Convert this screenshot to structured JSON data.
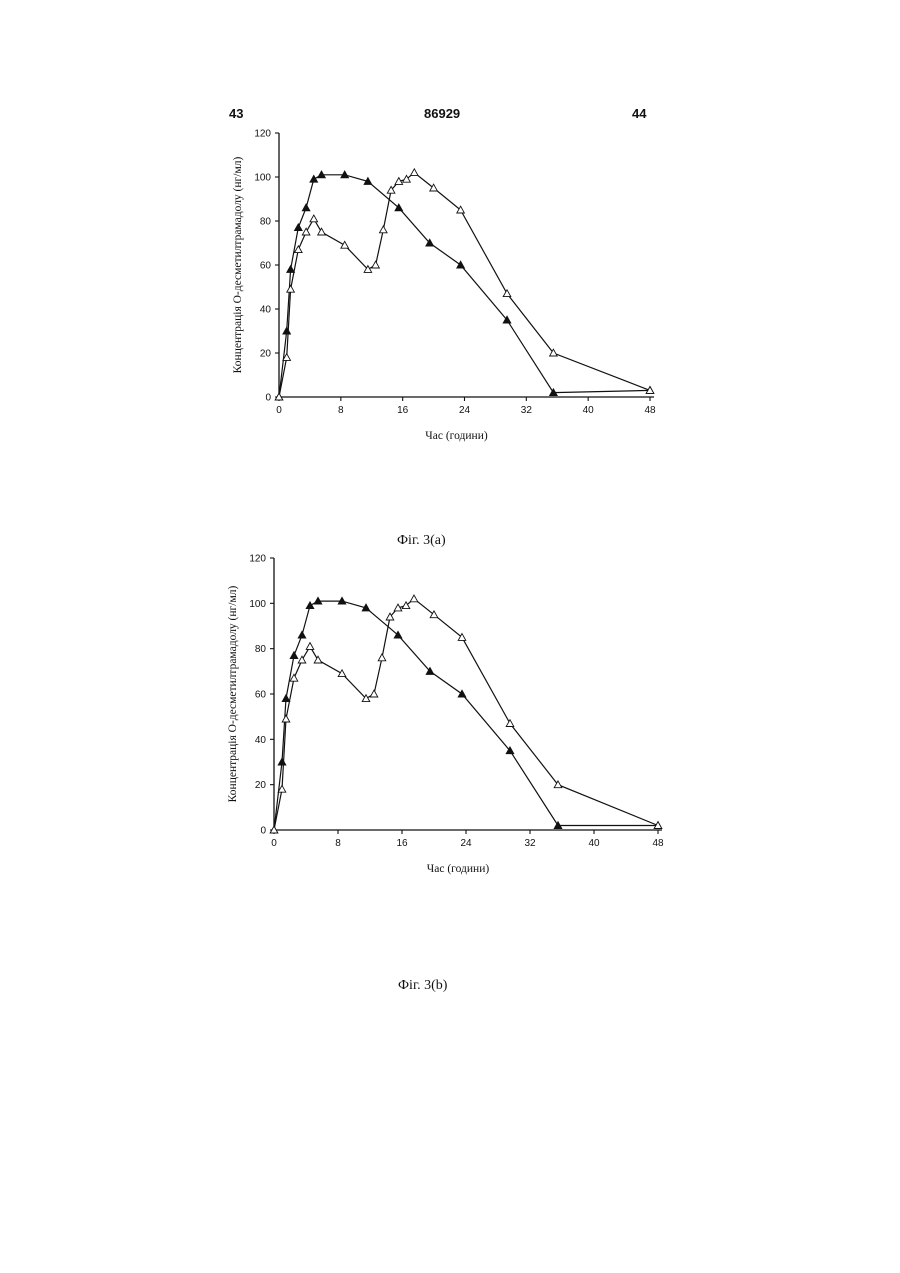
{
  "header": {
    "left": "43",
    "center": "86929",
    "right": "44"
  },
  "figures": [
    {
      "caption": "Фіг. 3(a)"
    },
    {
      "caption": "Фіг. 3(b)"
    }
  ],
  "chart_data": [
    {
      "type": "line",
      "xlabel": "Час (години)",
      "ylabel": "Концентрація О-десметилтрамадолу (нг/мл)",
      "xlim": [
        0,
        48
      ],
      "ylim": [
        0,
        120
      ],
      "xticks": [
        0,
        8,
        16,
        24,
        32,
        40,
        48
      ],
      "yticks": [
        0,
        20,
        40,
        60,
        80,
        100,
        120
      ],
      "grid": false,
      "series": [
        {
          "marker": "filled-triangle",
          "x": [
            0,
            1,
            1.5,
            2.5,
            3.5,
            4.5,
            5.5,
            8.5,
            11.5,
            15.5,
            19.5,
            23.5,
            29.5,
            35.5,
            48
          ],
          "y": [
            0,
            30,
            58,
            77,
            86,
            99,
            101,
            101,
            98,
            86,
            70,
            60,
            35,
            2,
            3
          ]
        },
        {
          "marker": "open-triangle",
          "x": [
            0,
            1,
            1.5,
            2.5,
            3.5,
            4.5,
            5.5,
            8.5,
            11.5,
            12.5,
            13.5,
            14.5,
            15.5,
            16.5,
            17.5,
            20,
            23.5,
            29.5,
            35.5,
            48
          ],
          "y": [
            0,
            18,
            49,
            67,
            75,
            81,
            75,
            69,
            58,
            60,
            76,
            94,
            98,
            99,
            102,
            95,
            85,
            47,
            20,
            3
          ]
        }
      ]
    },
    {
      "type": "line",
      "xlabel": "Час (години)",
      "ylabel": "Концентрація О-десметилтрамадолу (нг/мл)",
      "xlim": [
        0,
        48
      ],
      "ylim": [
        0,
        120
      ],
      "xticks": [
        0,
        8,
        16,
        24,
        32,
        40,
        48
      ],
      "yticks": [
        0,
        20,
        40,
        60,
        80,
        100,
        120
      ],
      "grid": false,
      "series": [
        {
          "marker": "filled-triangle",
          "x": [
            0,
            1,
            1.5,
            2.5,
            3.5,
            4.5,
            5.5,
            8.5,
            11.5,
            15.5,
            19.5,
            23.5,
            29.5,
            35.5,
            48
          ],
          "y": [
            0,
            30,
            58,
            77,
            86,
            99,
            101,
            101,
            98,
            86,
            70,
            60,
            35,
            2,
            2
          ]
        },
        {
          "marker": "open-triangle",
          "x": [
            0,
            1,
            1.5,
            2.5,
            3.5,
            4.5,
            5.5,
            8.5,
            11.5,
            12.5,
            13.5,
            14.5,
            15.5,
            16.5,
            17.5,
            20,
            23.5,
            29.5,
            35.5,
            48
          ],
          "y": [
            0,
            18,
            49,
            67,
            75,
            81,
            75,
            69,
            58,
            60,
            76,
            94,
            98,
            99,
            102,
            95,
            85,
            47,
            20,
            2
          ]
        }
      ]
    }
  ]
}
